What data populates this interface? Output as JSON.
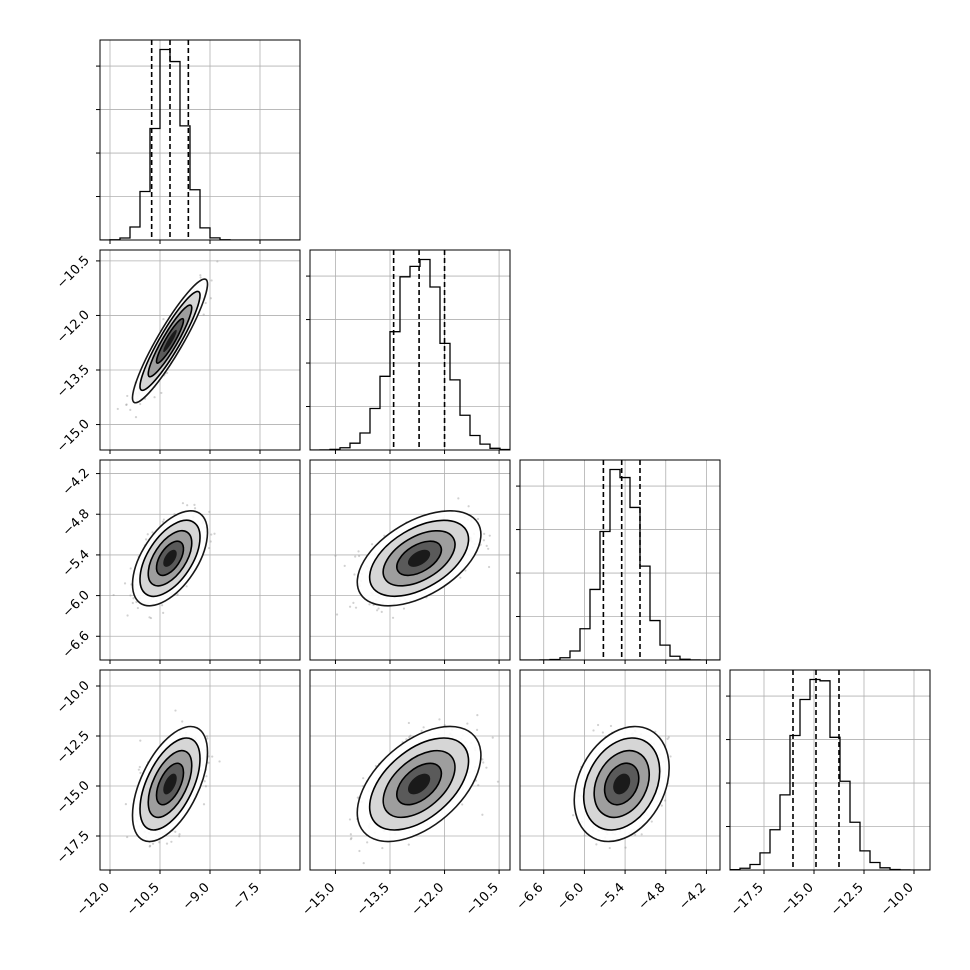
{
  "colors": {
    "mark": "#000000",
    "grid": "#b0b0b0",
    "scatter": "#9a9a9a",
    "background": "#ffffff"
  },
  "chart_data": {
    "type": "corner",
    "grid": true,
    "parameters": [
      {
        "range": [
          -12.3,
          -6.3
        ],
        "ticks": [
          -12.0,
          -10.5,
          -9.0,
          -7.5
        ],
        "tick_labels": [
          "−12.0",
          "−10.5",
          "−9.0",
          "−7.5"
        ],
        "mean": -10.2,
        "sd": 0.45,
        "quantiles": [
          -10.75,
          -10.2,
          -9.65
        ]
      },
      {
        "range": [
          -15.7,
          -10.2
        ],
        "ticks": [
          -15.0,
          -13.5,
          -12.0,
          -10.5
        ],
        "tick_labels": [
          "−15.0",
          "−13.5",
          "−12.0",
          "−10.5"
        ],
        "mean": -12.7,
        "sd": 0.68,
        "quantiles": [
          -13.4,
          -12.7,
          -12.0
        ]
      },
      {
        "range": [
          -6.95,
          -4.0
        ],
        "ticks": [
          -6.6,
          -6.0,
          -5.4,
          -4.8,
          -4.2
        ],
        "tick_labels": [
          "−6.6",
          "−6.0",
          "−5.4",
          "−4.8",
          "−4.2"
        ],
        "mean": -5.45,
        "sd": 0.28,
        "quantiles": [
          -5.72,
          -5.45,
          -5.18
        ]
      },
      {
        "range": [
          -19.2,
          -9.2
        ],
        "ticks": [
          -17.5,
          -15.0,
          -12.5,
          -10.0
        ],
        "tick_labels": [
          "−17.5",
          "−15.0",
          "−12.5",
          "−10.0"
        ],
        "mean": -14.9,
        "sd": 1.15,
        "quantiles": [
          -16.05,
          -14.9,
          -13.75
        ]
      }
    ],
    "correlations": {
      "1_0": 0.92,
      "2_0": 0.55,
      "2_1": 0.5,
      "3_0": 0.55,
      "3_1": 0.5,
      "3_2": 0.28
    }
  }
}
